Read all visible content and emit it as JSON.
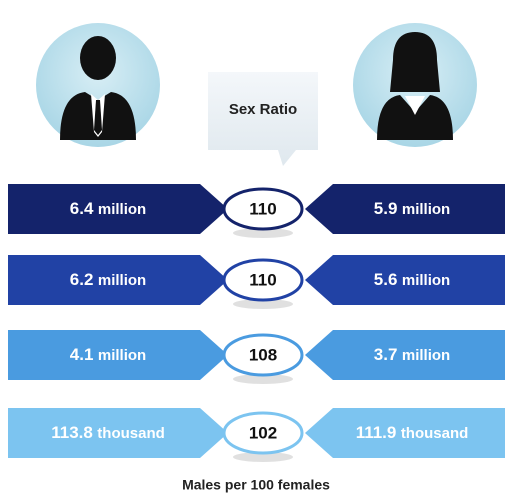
{
  "header": {
    "bubble": "Sex Ratio"
  },
  "rows": [
    {
      "male": {
        "amount": "6.4",
        "unit": "million"
      },
      "ratio": "110",
      "female": {
        "amount": "5.9",
        "unit": "million"
      }
    },
    {
      "male": {
        "amount": "6.2",
        "unit": "million"
      },
      "ratio": "110",
      "female": {
        "amount": "5.6",
        "unit": "million"
      }
    },
    {
      "male": {
        "amount": "4.1",
        "unit": "million"
      },
      "ratio": "108",
      "female": {
        "amount": "3.7",
        "unit": "million"
      }
    },
    {
      "male": {
        "amount": "113.8",
        "unit": "thousand"
      },
      "ratio": "102",
      "female": {
        "amount": "111.9",
        "unit": "thousand"
      }
    }
  ],
  "footer": {
    "caption": "Males per 100 females"
  }
}
